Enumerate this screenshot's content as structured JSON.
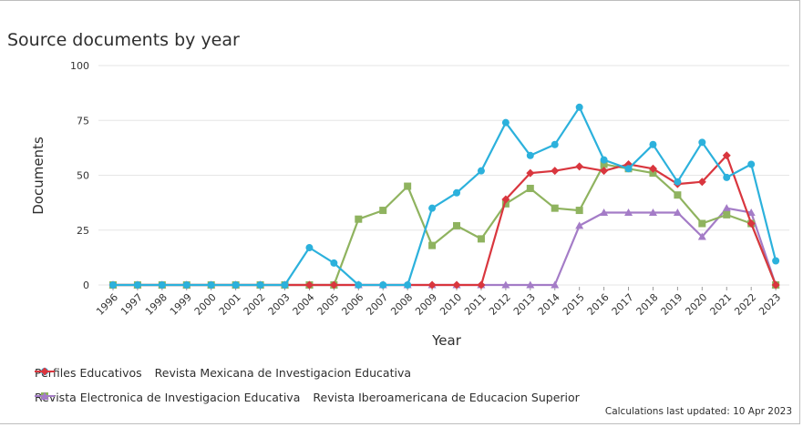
{
  "title": "Source documents by year",
  "footnote": "Calculations last updated: 10 Apr 2023",
  "chart_data": {
    "type": "line",
    "title": "Source documents by year",
    "xlabel": "Year",
    "ylabel": "Documents",
    "ylim": [
      0,
      100
    ],
    "yticks": [
      0,
      25,
      50,
      75,
      100
    ],
    "grid": "horizontal",
    "legend_position": "bottom",
    "x": [
      "1996",
      "1997",
      "1998",
      "1999",
      "2000",
      "2001",
      "2002",
      "2003",
      "2004",
      "2005",
      "2006",
      "2007",
      "2008",
      "2009",
      "2010",
      "2011",
      "2012",
      "2013",
      "2014",
      "2015",
      "2016",
      "2017",
      "2018",
      "2019",
      "2020",
      "2021",
      "2022",
      "2023"
    ],
    "series": [
      {
        "name": "Perfiles Educativos",
        "color": "#2cb1dc",
        "marker": "circle",
        "values": [
          0,
          0,
          0,
          0,
          0,
          0,
          0,
          0,
          17,
          10,
          0,
          0,
          0,
          35,
          42,
          52,
          74,
          59,
          64,
          81,
          57,
          53,
          64,
          47,
          65,
          49,
          55,
          11
        ]
      },
      {
        "name": "Revista Mexicana de Investigacion Educativa",
        "color": "#d9363e",
        "marker": "diamond",
        "values": [
          0,
          0,
          0,
          0,
          0,
          0,
          0,
          0,
          0,
          0,
          0,
          0,
          0,
          0,
          0,
          0,
          39,
          51,
          52,
          54,
          52,
          55,
          53,
          46,
          47,
          59,
          28,
          0
        ]
      },
      {
        "name": "Revista Electronica de Investigacion Educativa",
        "color": "#8fb35f",
        "marker": "square",
        "values": [
          0,
          0,
          0,
          0,
          0,
          0,
          0,
          0,
          0,
          0,
          30,
          34,
          45,
          18,
          27,
          21,
          37,
          44,
          35,
          34,
          55,
          53,
          51,
          41,
          28,
          32,
          28,
          0
        ]
      },
      {
        "name": "Revista Iberoamericana de Educacion Superior",
        "color": "#a47cc7",
        "marker": "triangle",
        "values": [
          0,
          0,
          0,
          0,
          0,
          0,
          0,
          0,
          0,
          0,
          0,
          0,
          0,
          0,
          0,
          0,
          0,
          0,
          0,
          27,
          33,
          33,
          33,
          33,
          22,
          35,
          33,
          0
        ]
      }
    ]
  }
}
